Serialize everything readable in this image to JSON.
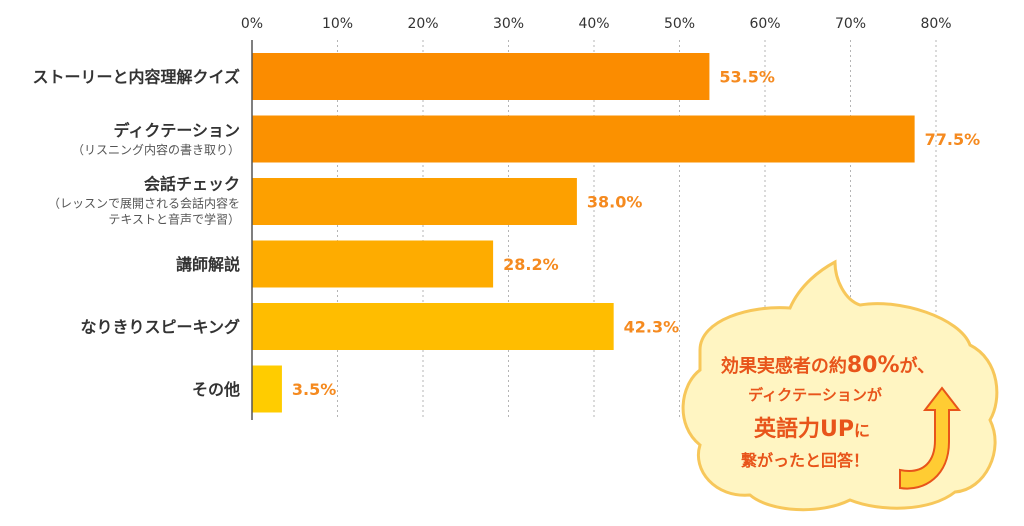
{
  "chart_data": {
    "type": "bar",
    "orientation": "horizontal",
    "xlim": [
      0,
      80
    ],
    "x_ticks": [
      "0%",
      "10%",
      "20%",
      "30%",
      "40%",
      "50%",
      "60%",
      "70%",
      "80%"
    ],
    "grid": true,
    "categories": [
      {
        "label": "ストーリーと内容理解クイズ",
        "sub": []
      },
      {
        "label": "ディクテーション",
        "sub": [
          "（リスニング内容の書き取り）"
        ]
      },
      {
        "label": "会話チェック",
        "sub": [
          "（レッスンで展開される会話内容を",
          "テキストと音声で学習）"
        ]
      },
      {
        "label": "講師解説",
        "sub": []
      },
      {
        "label": "なりきりスピーキング",
        "sub": []
      },
      {
        "label": "その他",
        "sub": []
      }
    ],
    "values": [
      53.5,
      77.5,
      38.0,
      28.2,
      42.3,
      3.5
    ],
    "value_labels": [
      "53.5%",
      "77.5%",
      "38.0%",
      "28.2%",
      "42.3%",
      "3.5%"
    ],
    "bar_colors": [
      "#fb8c00",
      "#fb9100",
      "#fda000",
      "#feac00",
      "#ffbd00",
      "#ffcc00"
    ]
  },
  "callout": {
    "line1_a": "効果実感者の約",
    "line1_b": "80%",
    "line1_c": "が、",
    "line2": "ディクテーションが",
    "line3_a": "英語力UP",
    "line3_b": "に",
    "line4": "繋がったと回答！"
  }
}
